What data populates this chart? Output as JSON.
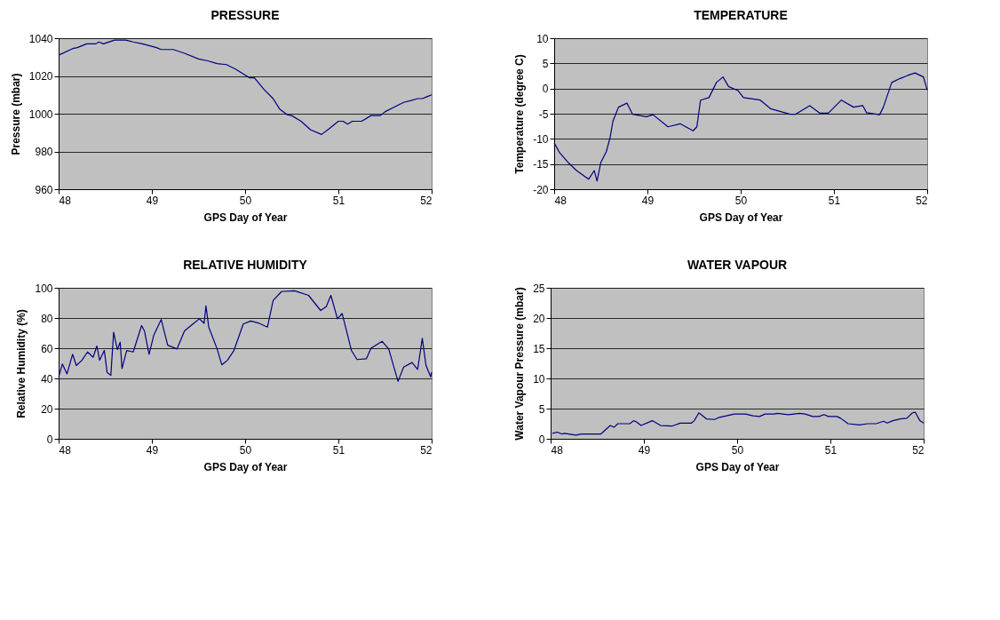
{
  "chart_data": [
    {
      "type": "line",
      "title": "PRESSURE",
      "xlabel": "GPS Day of Year",
      "ylabel": "Pressure (mbar)",
      "xlim": [
        48,
        52
      ],
      "xticks": [
        48,
        49,
        50,
        51,
        52
      ],
      "ylim": [
        960,
        1040
      ],
      "yticks": [
        960,
        980,
        1000,
        1020,
        1040
      ],
      "grid": "y",
      "x": [
        48.0,
        48.15,
        48.2,
        48.3,
        48.4,
        48.43,
        48.48,
        48.6,
        48.72,
        48.8,
        48.9,
        49.05,
        49.1,
        49.23,
        49.35,
        49.5,
        49.6,
        49.7,
        49.8,
        49.9,
        50.0,
        50.05,
        50.1,
        50.2,
        50.3,
        50.37,
        50.45,
        50.5,
        50.6,
        50.7,
        50.82,
        50.9,
        51.0,
        51.05,
        51.1,
        51.15,
        51.25,
        51.35,
        51.45,
        51.5,
        51.6,
        51.7,
        51.78,
        51.85,
        51.9,
        51.95,
        52.0
      ],
      "series": [
        {
          "color": "#000080",
          "values": [
            1031,
            1034.5,
            1035,
            1037,
            1037,
            1038,
            1037,
            1039,
            1039,
            1038,
            1037,
            1035,
            1034,
            1034,
            1032,
            1029,
            1028,
            1026.5,
            1026,
            1023.5,
            1020.5,
            1019,
            1019,
            1013,
            1008,
            1002.5,
            999.5,
            999,
            996,
            991.5,
            989,
            992,
            996,
            996,
            994.5,
            996,
            996,
            999,
            999,
            1001,
            1003.5,
            1006,
            1007,
            1008,
            1008,
            1009,
            1010
          ]
        }
      ]
    },
    {
      "type": "line",
      "title": "TEMPERATURE",
      "xlabel": "GPS Day of Year",
      "ylabel": "Temperature (degree C)",
      "xlim": [
        48,
        52
      ],
      "xticks": [
        48,
        49,
        50,
        51,
        52
      ],
      "ylim": [
        -20,
        10
      ],
      "yticks": [
        -20,
        -15,
        -10,
        -5,
        0,
        5,
        10
      ],
      "grid": "y",
      "x": [
        48.0,
        48.06,
        48.15,
        48.24,
        48.37,
        48.43,
        48.46,
        48.5,
        48.56,
        48.6,
        48.63,
        48.69,
        48.78,
        48.84,
        48.99,
        49.06,
        49.22,
        49.35,
        49.49,
        49.53,
        49.57,
        49.66,
        49.74,
        49.81,
        49.87,
        49.97,
        50.03,
        50.21,
        50.32,
        50.53,
        50.59,
        50.74,
        50.85,
        50.94,
        51.08,
        51.21,
        51.31,
        51.35,
        51.49,
        51.53,
        51.62,
        51.71,
        51.79,
        51.87,
        51.96,
        52.0
      ],
      "series": [
        {
          "color": "#000080",
          "values": [
            -10.8,
            -12.8,
            -14.7,
            -16.3,
            -18,
            -16.3,
            -18.4,
            -14.7,
            -12.5,
            -9.7,
            -6.5,
            -3.7,
            -2.9,
            -5.1,
            -5.6,
            -5.2,
            -7.6,
            -7,
            -8.4,
            -7.6,
            -2.3,
            -1.8,
            1.2,
            2.3,
            0.4,
            -0.4,
            -1.8,
            -2.3,
            -4,
            -5.1,
            -5.1,
            -3.4,
            -4.9,
            -4.9,
            -2.3,
            -3.7,
            -3.4,
            -4.8,
            -5.2,
            -3.7,
            1.2,
            2,
            2.6,
            3.1,
            2.3,
            -0.3
          ]
        }
      ]
    },
    {
      "type": "line",
      "title": "RELATIVE HUMIDITY",
      "xlabel": "GPS Day of Year",
      "ylabel": "Relative Humidity (%)",
      "xlim": [
        48,
        52
      ],
      "xticks": [
        48,
        49,
        50,
        51,
        52
      ],
      "ylim": [
        0,
        100
      ],
      "yticks": [
        0,
        20,
        40,
        60,
        80,
        100
      ],
      "grid": "y",
      "x": [
        48.0,
        48.04,
        48.09,
        48.15,
        48.19,
        48.25,
        48.31,
        48.37,
        48.41,
        48.44,
        48.49,
        48.52,
        48.56,
        48.59,
        48.63,
        48.66,
        48.68,
        48.73,
        48.8,
        48.89,
        48.92,
        48.97,
        49.02,
        49.1,
        49.17,
        49.27,
        49.35,
        49.44,
        49.51,
        49.56,
        49.58,
        49.61,
        49.7,
        49.75,
        49.81,
        49.88,
        49.98,
        50.06,
        50.15,
        50.24,
        50.3,
        50.39,
        50.53,
        50.68,
        50.81,
        50.87,
        50.92,
        50.99,
        51.04,
        51.1,
        51.14,
        51.2,
        51.3,
        51.35,
        51.47,
        51.54,
        51.6,
        51.64,
        51.7,
        51.79,
        51.85,
        51.9,
        51.94,
        51.99,
        52.0
      ],
      "series": [
        {
          "color": "#000080",
          "values": [
            41,
            49.5,
            43,
            56,
            48.5,
            52,
            57.5,
            54,
            61.5,
            52,
            58.5,
            44,
            42,
            70.5,
            59,
            64,
            46.5,
            58.5,
            57.5,
            75,
            71.5,
            56,
            68.5,
            79,
            62,
            59.5,
            71.5,
            76,
            79.5,
            76.5,
            88,
            74,
            59.5,
            49,
            52,
            58.5,
            76,
            78,
            76.5,
            74,
            91.5,
            97.5,
            98,
            95,
            85,
            87.5,
            95,
            79.5,
            83,
            68.5,
            58.5,
            52.5,
            53,
            60,
            64.5,
            59.5,
            46.5,
            38,
            47.5,
            50.5,
            46,
            66.5,
            48.5,
            41,
            44
          ]
        }
      ]
    },
    {
      "type": "line",
      "title": "WATER VAPOUR",
      "xlabel": "GPS Day of Year",
      "ylabel": "Water Vapour Pressure (mbar)",
      "xlim": [
        48,
        52
      ],
      "xticks": [
        48,
        49,
        50,
        51,
        52
      ],
      "ylim": [
        0,
        25
      ],
      "yticks": [
        0,
        5,
        10,
        15,
        20,
        25
      ],
      "grid": "y",
      "x": [
        48.02,
        48.07,
        48.12,
        48.15,
        48.27,
        48.33,
        48.54,
        48.64,
        48.68,
        48.72,
        48.85,
        48.89,
        48.92,
        48.97,
        49.09,
        49.18,
        49.3,
        49.39,
        49.51,
        49.54,
        49.59,
        49.67,
        49.76,
        49.8,
        49.97,
        50.09,
        50.17,
        50.24,
        50.3,
        50.4,
        50.43,
        50.55,
        50.67,
        50.73,
        50.81,
        50.88,
        50.93,
        50.98,
        51.07,
        51.11,
        51.19,
        51.31,
        51.4,
        51.49,
        51.57,
        51.61,
        51.67,
        51.75,
        51.82,
        51.88,
        51.91,
        51.96,
        52.0
      ],
      "series": [
        {
          "color": "#000080",
          "values": [
            0.9,
            1.1,
            0.8,
            0.9,
            0.6,
            0.8,
            0.8,
            2.2,
            1.9,
            2.5,
            2.5,
            3,
            2.8,
            2.2,
            3,
            2.2,
            2.1,
            2.6,
            2.6,
            3,
            4.3,
            3.3,
            3.2,
            3.5,
            4.1,
            4.1,
            3.8,
            3.7,
            4.1,
            4.1,
            4.2,
            4,
            4.2,
            4.1,
            3.7,
            3.7,
            4,
            3.7,
            3.7,
            3.4,
            2.5,
            2.3,
            2.5,
            2.5,
            2.9,
            2.6,
            3,
            3.3,
            3.4,
            4.3,
            4.4,
            3,
            2.6
          ]
        }
      ]
    }
  ]
}
